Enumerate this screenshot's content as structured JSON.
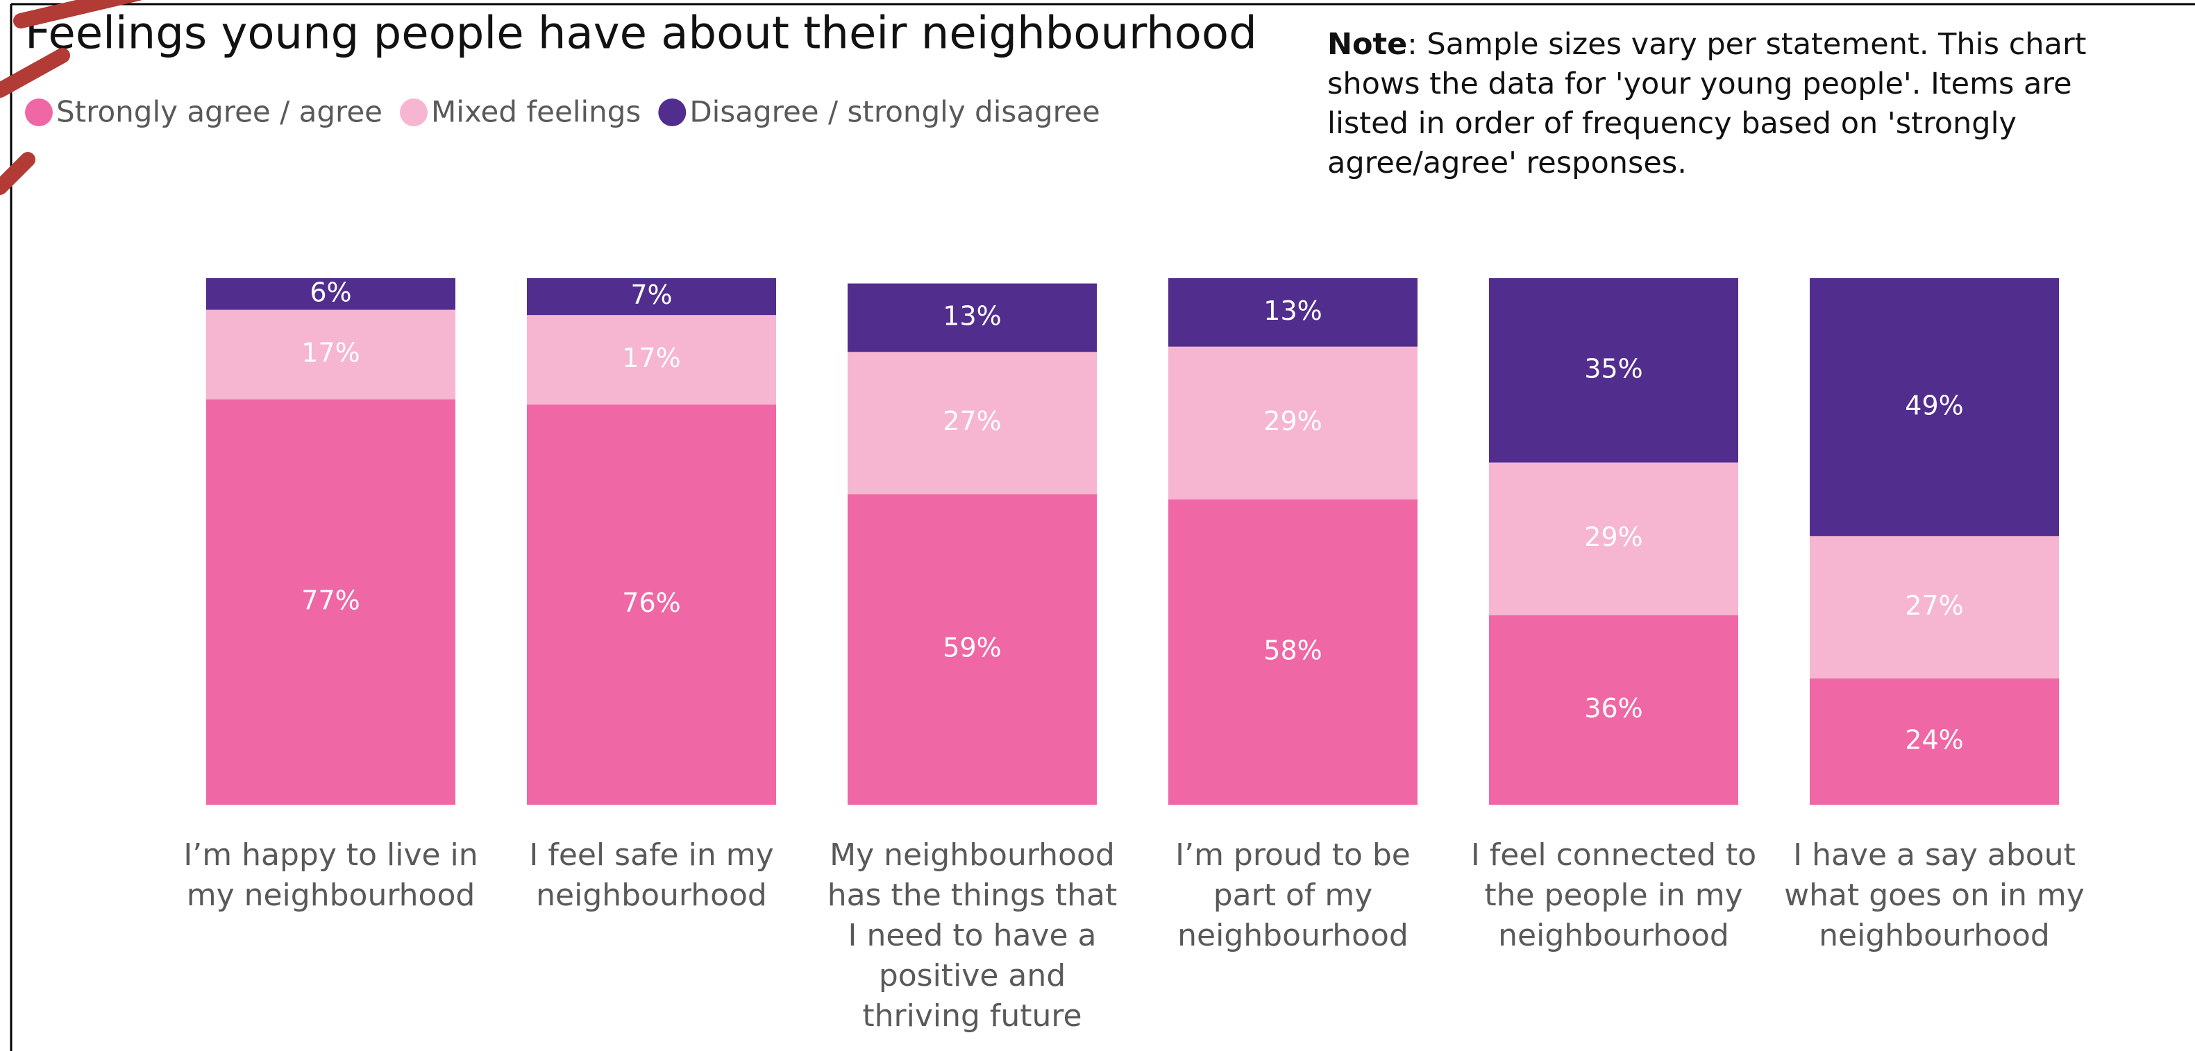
{
  "chart_data": {
    "type": "stacked_bar",
    "title": "Feelings young people have about their neighbourhood",
    "note_label": "Note",
    "note": ": Sample sizes vary per statement. This chart shows the data for 'your young people'. Items are listed in order of frequency based on 'strongly agree/agree' responses.",
    "categories": [
      "I’m happy to live in my neighbourhood",
      "I feel safe in my neighbourhood",
      "My neighbourhood has the things that I need to have a positive and thriving future",
      "I’m proud to be part of my neighbourhood",
      "I feel connected to the people in my neighbourhood",
      "I have a say about what goes on in my neighbourhood"
    ],
    "series": [
      {
        "name": "Strongly agree / agree",
        "color": "#ef67a4",
        "values": [
          77,
          76,
          59,
          58,
          36,
          24
        ],
        "value_labels": [
          "77%",
          "76%",
          "59%",
          "58%",
          "36%",
          "24%"
        ]
      },
      {
        "name": "Mixed feelings",
        "color": "#f6b5d1",
        "values": [
          17,
          17,
          27,
          29,
          29,
          27
        ],
        "value_labels": [
          "17%",
          "17%",
          "27%",
          "29%",
          "29%",
          "27%"
        ]
      },
      {
        "name": "Disagree / strongly disagree",
        "color": "#512d8e",
        "values": [
          6,
          7,
          13,
          13,
          35,
          49
        ],
        "value_labels": [
          "6%",
          "7%",
          "13%",
          "13%",
          "35%",
          "49%"
        ]
      }
    ],
    "ylim": [
      0,
      100
    ]
  }
}
